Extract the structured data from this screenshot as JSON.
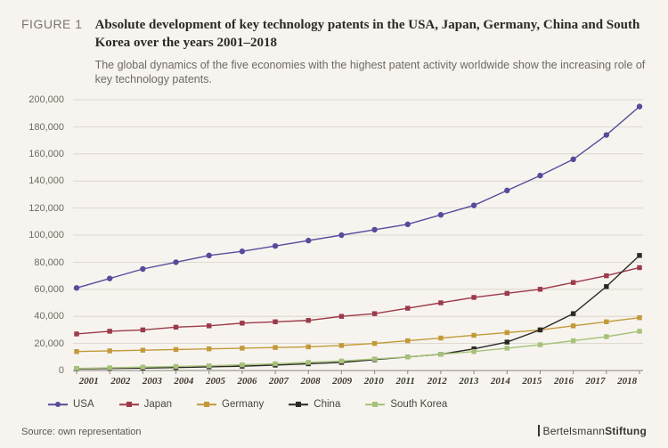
{
  "figure_label": "FIGURE 1",
  "title": "Absolute development of key technology patents in the USA, Japan, Germany, China and South Korea over the years 2001–2018",
  "subtitle": "The global dynamics of the five economies with the highest patent activity worldwide show the increasing role of key technology patents.",
  "source": "Source: own representation",
  "brand_part1": "Bertelsmann",
  "brand_part2": "Stiftung",
  "background_color": "#f7f4ef",
  "axis_color": "#8a857b",
  "grid_color": "#d6d1c6",
  "chart": {
    "type": "line",
    "years": [
      2001,
      2002,
      2003,
      2004,
      2005,
      2006,
      2007,
      2008,
      2009,
      2010,
      2011,
      2012,
      2013,
      2014,
      2015,
      2016,
      2017,
      2018
    ],
    "ymin": 0,
    "ymax": 200000,
    "ytick_step": 20000,
    "yticks": [
      0,
      20000,
      40000,
      60000,
      80000,
      100000,
      120000,
      140000,
      160000,
      180000,
      200000
    ],
    "ytick_labels": [
      "0",
      "20,000",
      "40,000",
      "60,000",
      "80,000",
      "100,000",
      "120,000",
      "140,000",
      "160,000",
      "180,000",
      "200,000"
    ],
    "marker_size": 3.2,
    "line_width": 1.4,
    "series": [
      {
        "name": "USA",
        "color": "#5a4a9c",
        "marker": "circle",
        "values": [
          61000,
          68000,
          75000,
          80000,
          85000,
          88000,
          92000,
          96000,
          100000,
          104000,
          108000,
          115000,
          122000,
          133000,
          144000,
          156000,
          174000,
          195000
        ]
      },
      {
        "name": "Japan",
        "color": "#9c3a4a",
        "marker": "square",
        "values": [
          27000,
          29000,
          30000,
          32000,
          33000,
          35000,
          36000,
          37000,
          40000,
          42000,
          46000,
          50000,
          54000,
          57000,
          60000,
          65000,
          70000,
          76000
        ]
      },
      {
        "name": "Germany",
        "color": "#c29a3a",
        "marker": "square",
        "values": [
          14000,
          14500,
          15000,
          15500,
          16000,
          16500,
          17000,
          17500,
          18500,
          20000,
          22000,
          24000,
          26000,
          28000,
          30000,
          33000,
          36000,
          39000
        ]
      },
      {
        "name": "China",
        "color": "#2d2a25",
        "marker": "square",
        "values": [
          1200,
          1500,
          1800,
          2200,
          2700,
          3200,
          4000,
          5000,
          6000,
          8000,
          10000,
          12000,
          16000,
          21000,
          30000,
          42000,
          62000,
          85000
        ]
      },
      {
        "name": "South Korea",
        "color": "#a6c27a",
        "marker": "square",
        "values": [
          1500,
          2000,
          2500,
          3000,
          3500,
          4200,
          5000,
          6000,
          7000,
          8500,
          10000,
          12000,
          14000,
          16500,
          19000,
          22000,
          25000,
          29000
        ]
      }
    ]
  }
}
